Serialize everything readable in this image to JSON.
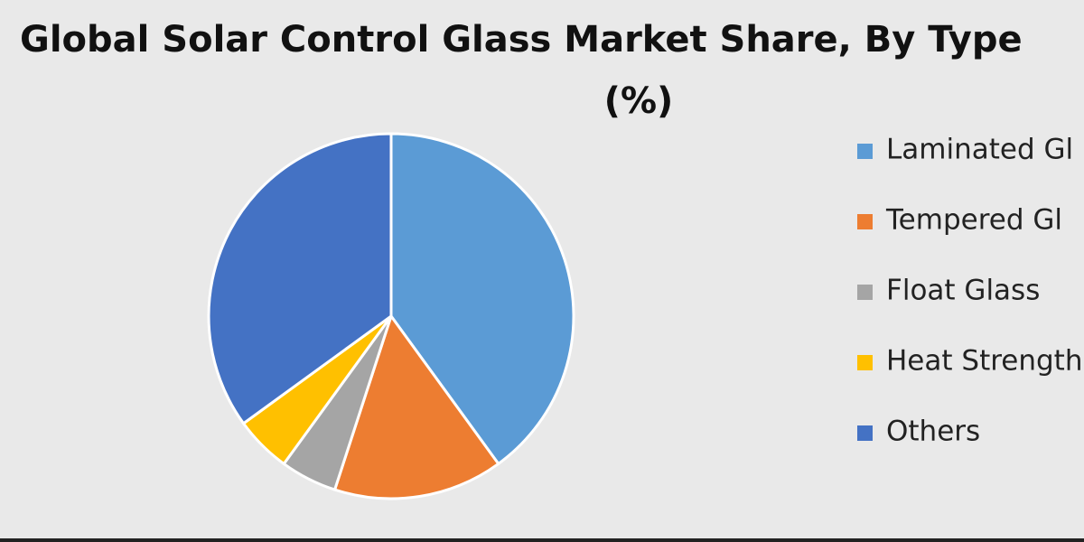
{
  "chart_data": {
    "type": "pie",
    "title": [
      "Global Solar Control Glass Market Share, By Type",
      "(%)"
    ],
    "categories": [
      "Laminated Gl",
      "Tempered Gl",
      "Float Glass",
      "Heat Strength",
      "Others"
    ],
    "values": [
      40,
      15,
      5,
      5,
      35
    ],
    "colors": [
      "#5b9bd5",
      "#ed7d31",
      "#a5a5a5",
      "#ffc000",
      "#4472c4"
    ],
    "legend": "right"
  }
}
